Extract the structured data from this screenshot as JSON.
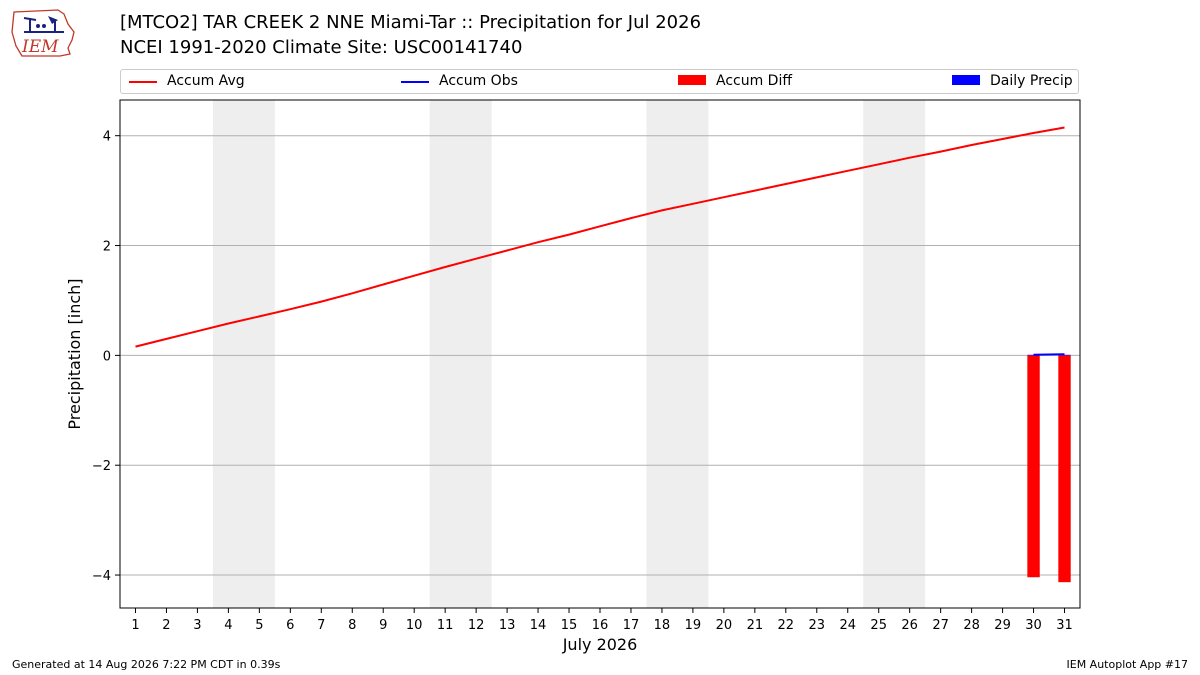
{
  "header": {
    "title": "[MTCO2] TAR CREEK 2 NNE Miami-Tar :: Precipitation for Jul 2026",
    "subtitle": "NCEI 1991-2020 Climate Site: USC00141740"
  },
  "logo": {
    "text": "IEM",
    "icon": "iem-logo-icon"
  },
  "legend": [
    {
      "label": "Accum Avg",
      "color": "#ff0000",
      "kind": "line"
    },
    {
      "label": "Accum Obs",
      "color": "#0000ff",
      "kind": "line"
    },
    {
      "label": "Accum Diff",
      "color": "#ff0000",
      "kind": "patch"
    },
    {
      "label": "Daily Precip",
      "color": "#0000ff",
      "kind": "patch"
    }
  ],
  "footer": {
    "left": "Generated at 14 Aug 2026 7:22 PM CDT in 0.39s",
    "right": "IEM Autoplot App #17"
  },
  "chart_data": {
    "type": "line",
    "xlabel": "July 2026",
    "ylabel": "Precipitation [inch]",
    "x": [
      1,
      2,
      3,
      4,
      5,
      6,
      7,
      8,
      9,
      10,
      11,
      12,
      13,
      14,
      15,
      16,
      17,
      18,
      19,
      20,
      21,
      22,
      23,
      24,
      25,
      26,
      27,
      28,
      29,
      30,
      31
    ],
    "xlim": [
      0.5,
      31.5
    ],
    "ylim": [
      -4.6,
      4.65
    ],
    "yticks": [
      -4,
      -2,
      0,
      2,
      4
    ],
    "ytick_labels": [
      "−4",
      "−2",
      "0",
      "2",
      "4"
    ],
    "grid": "horizontal",
    "weekend_shading": [
      [
        3.5,
        5.5
      ],
      [
        10.5,
        12.5
      ],
      [
        17.5,
        19.5
      ],
      [
        24.5,
        26.5
      ]
    ],
    "series": [
      {
        "name": "Accum Avg",
        "kind": "line",
        "color": "#ff0000",
        "values": [
          0.16,
          0.3,
          0.44,
          0.58,
          0.71,
          0.84,
          0.98,
          1.13,
          1.29,
          1.45,
          1.61,
          1.76,
          1.91,
          2.06,
          2.2,
          2.35,
          2.5,
          2.64,
          2.76,
          2.88,
          3.0,
          3.12,
          3.24,
          3.36,
          3.48,
          3.6,
          3.71,
          3.83,
          3.94,
          4.05,
          4.15
        ]
      },
      {
        "name": "Accum Obs",
        "kind": "line",
        "color": "#0000ff",
        "x": [
          30,
          31
        ],
        "values": [
          0.01,
          0.02
        ]
      },
      {
        "name": "Accum Diff",
        "kind": "bar",
        "color": "#ff0000",
        "x": [
          30,
          31
        ],
        "values": [
          -4.04,
          -4.13
        ]
      },
      {
        "name": "Daily Precip",
        "kind": "bar",
        "color": "#0000ff",
        "x": [
          30,
          31
        ],
        "values": [
          0.01,
          0.01
        ]
      }
    ]
  }
}
